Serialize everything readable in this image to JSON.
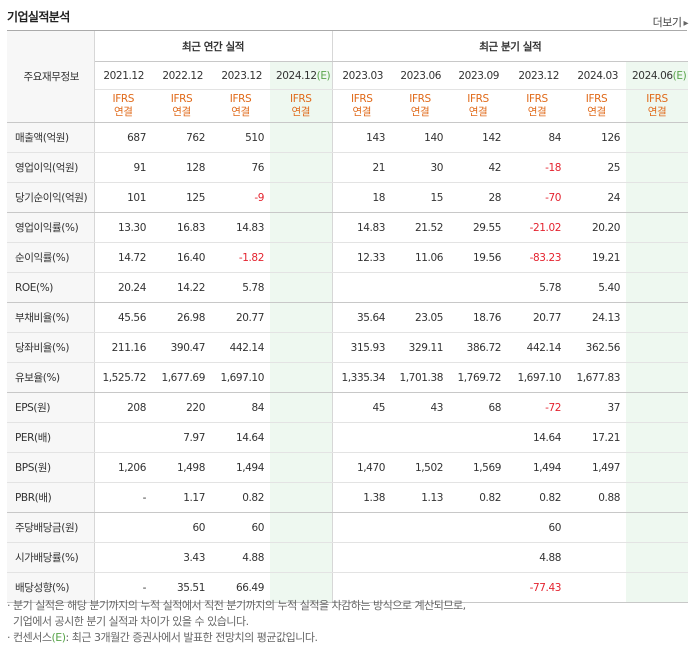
{
  "header": {
    "title": "기업실적분석",
    "more": "더보기",
    "more_icon": "▸"
  },
  "table": {
    "row_header_label": "주요재무정보",
    "annual_label": "최근 연간 실적",
    "quarter_label": "최근 분기 실적",
    "periods": [
      "2021.12",
      "2022.12",
      "2023.12",
      "2024.12",
      "2023.03",
      "2023.06",
      "2023.09",
      "2023.12",
      "2024.03",
      "2024.06"
    ],
    "estimate_suffix": "(E)",
    "ifrs_top": "IFRS",
    "ifrs_bottom": "연결",
    "rows": [
      {
        "label": "매출액(억원)",
        "values": [
          "687",
          "762",
          "510",
          "",
          "143",
          "140",
          "142",
          "84",
          "126",
          ""
        ]
      },
      {
        "label": "영업이익(억원)",
        "values": [
          "91",
          "128",
          "76",
          "",
          "21",
          "30",
          "42",
          "-18",
          "25",
          ""
        ]
      },
      {
        "label": "당기순이익(억원)",
        "values": [
          "101",
          "125",
          "-9",
          "",
          "18",
          "15",
          "28",
          "-70",
          "24",
          ""
        ]
      },
      {
        "label": "영업이익률(%)",
        "values": [
          "13.30",
          "16.83",
          "14.83",
          "",
          "14.83",
          "21.52",
          "29.55",
          "-21.02",
          "20.20",
          ""
        ]
      },
      {
        "label": "순이익률(%)",
        "values": [
          "14.72",
          "16.40",
          "-1.82",
          "",
          "12.33",
          "11.06",
          "19.56",
          "-83.23",
          "19.21",
          ""
        ]
      },
      {
        "label": "ROE(%)",
        "values": [
          "20.24",
          "14.22",
          "5.78",
          "",
          "",
          "",
          "",
          "5.78",
          "5.40",
          ""
        ]
      },
      {
        "label": "부채비율(%)",
        "values": [
          "45.56",
          "26.98",
          "20.77",
          "",
          "35.64",
          "23.05",
          "18.76",
          "20.77",
          "24.13",
          ""
        ]
      },
      {
        "label": "당좌비율(%)",
        "values": [
          "211.16",
          "390.47",
          "442.14",
          "",
          "315.93",
          "329.11",
          "386.72",
          "442.14",
          "362.56",
          ""
        ]
      },
      {
        "label": "유보율(%)",
        "values": [
          "1,525.72",
          "1,677.69",
          "1,697.10",
          "",
          "1,335.34",
          "1,701.38",
          "1,769.72",
          "1,697.10",
          "1,677.83",
          ""
        ]
      },
      {
        "label": "EPS(원)",
        "values": [
          "208",
          "220",
          "84",
          "",
          "45",
          "43",
          "68",
          "-72",
          "37",
          ""
        ]
      },
      {
        "label": "PER(배)",
        "values": [
          "",
          "7.97",
          "14.64",
          "",
          "",
          "",
          "",
          "14.64",
          "17.21",
          ""
        ]
      },
      {
        "label": "BPS(원)",
        "values": [
          "1,206",
          "1,498",
          "1,494",
          "",
          "1,470",
          "1,502",
          "1,569",
          "1,494",
          "1,497",
          ""
        ]
      },
      {
        "label": "PBR(배)",
        "values": [
          "-",
          "1.17",
          "0.82",
          "",
          "1.38",
          "1.13",
          "0.82",
          "0.82",
          "0.88",
          ""
        ]
      },
      {
        "label": "주당배당금(원)",
        "values": [
          "",
          "60",
          "60",
          "",
          "",
          "",
          "",
          "60",
          "",
          ""
        ]
      },
      {
        "label": "시가배당률(%)",
        "values": [
          "",
          "3.43",
          "4.88",
          "",
          "",
          "",
          "",
          "4.88",
          "",
          ""
        ]
      },
      {
        "label": "배당성향(%)",
        "values": [
          "-",
          "35.51",
          "66.49",
          "",
          "",
          "",
          "",
          "-77.43",
          "",
          ""
        ]
      }
    ]
  },
  "notes": {
    "line1": "· 분기 실적은 해당 분기까지의 누적 실적에서 직전 분기까지의 누적 실적을 차감하는 방식으로 계산되므로,",
    "line2": "  기업에서 공시한 분기 실적과 차이가 있을 수 있습니다.",
    "line3_pre": "· 컨센서스",
    "line3_e": "(E)",
    "line3_post": ": 최근 3개월간 증권사에서 발표한 전망치의 평균값입니다."
  },
  "colors": {
    "negative": "#e4232f",
    "ifrs": "#e06a1a",
    "estimate_bg": "#eef8f0",
    "estimate_text": "#5aa54c"
  }
}
